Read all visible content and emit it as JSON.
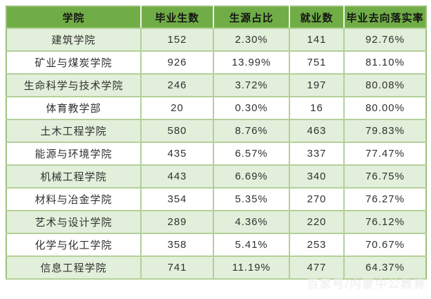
{
  "chart_data": {
    "type": "table",
    "title": "",
    "columns": [
      "学院",
      "毕业生数",
      "生源占比",
      "就业数",
      "毕业去向落实率"
    ],
    "column_keys": [
      "college",
      "graduates",
      "source-ratio",
      "employment",
      "placement-rate"
    ],
    "rows": [
      [
        "建筑学院",
        "152",
        "2.30%",
        "141",
        "92.76%"
      ],
      [
        "矿业与煤炭学院",
        "926",
        "13.99%",
        "751",
        "81.10%"
      ],
      [
        "生命科学与技术学院",
        "246",
        "3.72%",
        "197",
        "80.08%"
      ],
      [
        "体育教学部",
        "20",
        "0.30%",
        "16",
        "80.00%"
      ],
      [
        "土木工程学院",
        "580",
        "8.76%",
        "463",
        "79.83%"
      ],
      [
        "能源与环境学院",
        "435",
        "6.57%",
        "337",
        "77.47%"
      ],
      [
        "机械工程学院",
        "443",
        "6.69%",
        "340",
        "76.75%"
      ],
      [
        "材料与冶金学院",
        "354",
        "5.35%",
        "270",
        "76.27%"
      ],
      [
        "艺术与设计学院",
        "289",
        "4.36%",
        "220",
        "76.12%"
      ],
      [
        "化学与化工学院",
        "358",
        "5.41%",
        "253",
        "70.67%"
      ],
      [
        "信息工程学院",
        "741",
        "11.19%",
        "477",
        "64.37%"
      ]
    ]
  },
  "watermark": {
    "text": "百家号/内蒙中公教育"
  },
  "colors": {
    "header_bg": "#70AD47",
    "row_alt_bg": "#E2EFDA",
    "row_bg": "#FFFFFF",
    "grid_border": "#B3D098",
    "outer_border": "#9CC07A",
    "header_divider": "#F3F7EE",
    "text": "#303030"
  }
}
